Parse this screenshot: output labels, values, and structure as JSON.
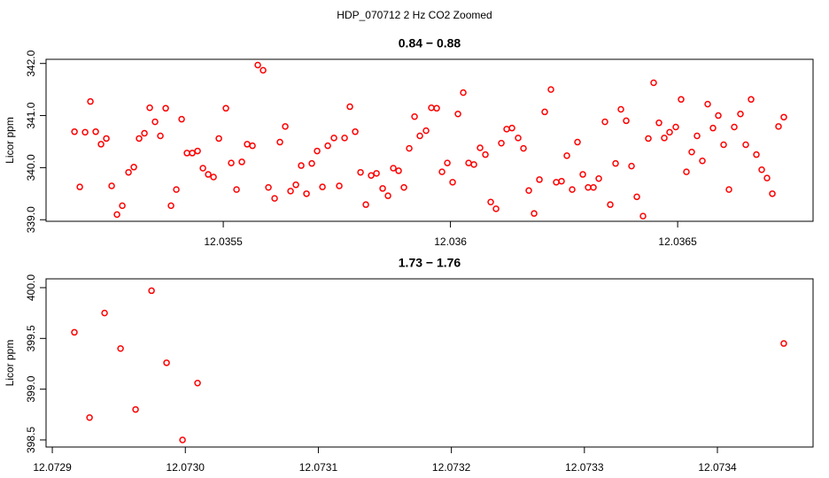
{
  "title": "HDP_070712  2 Hz CO2 Zoomed",
  "chart_data": [
    {
      "type": "scatter",
      "title": "0.84 − 0.88",
      "y_label": "Licor ppm",
      "color": "#ff0000",
      "xlim": [
        12.03511,
        12.036798
      ],
      "ylim": [
        338.97,
        342.08
      ],
      "xticks": [
        12.0355,
        12.036,
        12.0365
      ],
      "yticks": [
        {
          "value": 339,
          "label": "339.0"
        },
        {
          "value": 340,
          "label": "340.0"
        },
        {
          "value": 341,
          "label": "341.0"
        },
        {
          "value": 342,
          "label": "342.0"
        }
      ],
      "x": [
        12.0351726,
        12.0351843,
        12.035196,
        12.0352076,
        12.0352193,
        12.035231,
        12.0352427,
        12.0352544,
        12.0352661,
        12.0352778,
        12.0352915,
        12.0353032,
        12.0353148,
        12.0353265,
        12.0353382,
        12.0353499,
        12.0353616,
        12.0353733,
        12.035385,
        12.0353967,
        12.0354084,
        12.0354201,
        12.0354318,
        12.0354435,
        12.0354552,
        12.0354669,
        12.0354786,
        12.0354903,
        12.0355058,
        12.0355175,
        12.0355292,
        12.0355409,
        12.0355526,
        12.0355643,
        12.035576,
        12.0355877,
        12.0355994,
        12.035613,
        12.0356247,
        12.0356364,
        12.0356481,
        12.0356598,
        12.0356715,
        12.0356832,
        12.0356949,
        12.0357066,
        12.0357183,
        12.03573,
        12.0357436,
        12.0357553,
        12.035767,
        12.0357787,
        12.0357904,
        12.0358021,
        12.0358138,
        12.0358255,
        12.0358372,
        12.0358508,
        12.0358625,
        12.0358742,
        12.0358859,
        12.0358976,
        12.0359093,
        12.035921,
        12.0359327,
        12.0359463,
        12.035958,
        12.0359697,
        12.0359814,
        12.0359931,
        12.0360048,
        12.0360165,
        12.0360282,
        12.0360399,
        12.0360516,
        12.0360652,
        12.0360769,
        12.0360886,
        12.0361003,
        12.036112,
        12.0361237,
        12.0361354,
        12.036149,
        12.0361607,
        12.0361724,
        12.0361841,
        12.0361958,
        12.0362075,
        12.0362211,
        12.0362328,
        12.0362445,
        12.0362562,
        12.0362679,
        12.0362796,
        12.0362913,
        12.036303,
        12.0363147,
        12.0363264,
        12.03634,
        12.0363517,
        12.0363634,
        12.0363751,
        12.0363868,
        12.0363985,
        12.0364102,
        12.0364238,
        12.0364355,
        12.0364472,
        12.0364589,
        12.0364706,
        12.0364823,
        12.0364959,
        12.0365076,
        12.0365193,
        12.036531,
        12.0365427,
        12.0365544,
        12.0365661,
        12.0365778,
        12.0365895,
        12.0366012,
        12.0366129,
        12.0366246,
        12.0366382,
        12.0366499,
        12.0366616,
        12.0366733,
        12.036685,
        12.0366967,
        12.0367084,
        12.036722,
        12.0367337
      ],
      "values": [
        340.69,
        339.63,
        340.68,
        341.27,
        340.69,
        340.45,
        340.56,
        339.65,
        339.1,
        339.27,
        339.91,
        340.01,
        340.56,
        340.66,
        341.15,
        340.88,
        340.61,
        341.14,
        339.27,
        339.58,
        340.93,
        340.28,
        340.28,
        340.32,
        339.99,
        339.87,
        339.82,
        340.56,
        341.14,
        340.09,
        339.58,
        340.11,
        340.45,
        340.42,
        341.97,
        341.87,
        339.62,
        339.41,
        340.49,
        340.79,
        339.55,
        339.67,
        340.04,
        339.5,
        340.08,
        340.32,
        339.63,
        340.42,
        340.57,
        339.65,
        340.57,
        341.17,
        340.69,
        339.91,
        339.29,
        339.85,
        339.89,
        339.6,
        339.46,
        339.99,
        339.94,
        339.62,
        340.37,
        340.98,
        340.61,
        340.71,
        341.15,
        341.14,
        339.92,
        340.09,
        339.72,
        341.03,
        341.44,
        340.09,
        340.06,
        340.38,
        340.25,
        339.34,
        339.21,
        340.47,
        340.74,
        340.76,
        340.57,
        340.37,
        339.56,
        339.12,
        339.77,
        341.07,
        341.5,
        339.72,
        339.74,
        340.23,
        339.58,
        340.49,
        339.87,
        339.62,
        339.62,
        339.79,
        340.88,
        339.29,
        340.08,
        341.12,
        340.9,
        340.03,
        339.44,
        339.07,
        340.56,
        341.63,
        340.86,
        340.57,
        340.68,
        340.78,
        341.31,
        339.92,
        340.3,
        340.61,
        340.13,
        341.22,
        340.76,
        341.0,
        340.44,
        339.58,
        340.78,
        341.03,
        340.44,
        341.31,
        340.25,
        339.96,
        339.8,
        339.5,
        340.79,
        340.97
      ]
    },
    {
      "type": "scatter",
      "title": "1.73 − 1.76",
      "y_label": "Licor ppm",
      "color": "#ff0000",
      "xlim": [
        12.0728953,
        12.0734719
      ],
      "ylim": [
        398.43,
        400.087
      ],
      "xticks": [
        12.0729,
        12.073,
        12.0731,
        12.0732,
        12.0733,
        12.0734
      ],
      "xtick_labels": [
        "12.0729",
        "12.0730",
        "12.0731",
        "12.0732",
        "12.0733",
        "12.0734"
      ],
      "yticks": [
        398.5,
        {
          "value": 399,
          "label": "399.0"
        },
        399.5,
        {
          "value": 400,
          "label": "400.0"
        }
      ],
      "x": [
        12.0729166,
        12.072928,
        12.0729393,
        12.0729513,
        12.0729626,
        12.0729746,
        12.0729859,
        12.0729979,
        12.0730092,
        12.0734499
      ],
      "values": [
        399.56,
        398.72,
        399.75,
        399.4,
        398.8,
        399.97,
        399.26,
        398.5,
        399.06,
        399.45
      ]
    }
  ]
}
